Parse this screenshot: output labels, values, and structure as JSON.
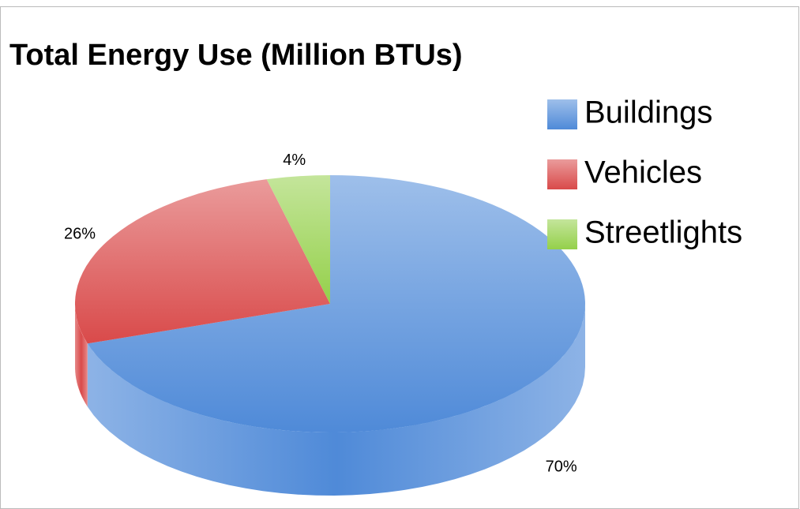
{
  "chart_data": {
    "type": "pie",
    "title": "Total Energy Use (Million BTUs)",
    "categories": [
      "Buildings",
      "Vehicles",
      "Streetlights"
    ],
    "values": [
      70,
      26,
      4
    ],
    "value_labels": [
      "70%",
      "26%",
      "4%"
    ],
    "colors": [
      "#4f8ad8",
      "#d94a4a",
      "#94d04a"
    ],
    "legend": "right"
  }
}
